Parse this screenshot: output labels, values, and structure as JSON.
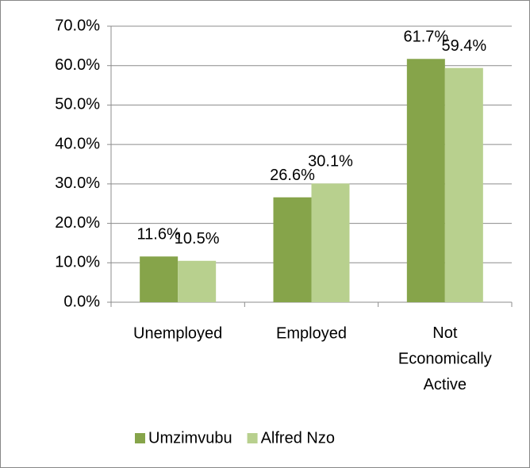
{
  "chart_data": {
    "type": "bar",
    "categories": [
      "Unemployed",
      "Employed",
      "Not Economically Active"
    ],
    "series": [
      {
        "name": "Umzimvubu",
        "color": "#86a44a",
        "values": [
          11.6,
          26.6,
          61.7
        ],
        "value_labels": [
          "11.6%",
          "26.6%",
          "61.7%"
        ]
      },
      {
        "name": "Alfred Nzo",
        "color": "#b8d08e",
        "values": [
          10.5,
          30.1,
          59.4
        ],
        "value_labels": [
          "10.5%",
          "30.1%",
          "59.4%"
        ]
      }
    ],
    "ylim": [
      0,
      70
    ],
    "yticks": [
      {
        "value": 0,
        "label": "0.0%"
      },
      {
        "value": 10,
        "label": "10.0%"
      },
      {
        "value": 20,
        "label": "20.0%"
      },
      {
        "value": 30,
        "label": "30.0%"
      },
      {
        "value": 40,
        "label": "40.0%"
      },
      {
        "value": 50,
        "label": "50.0%"
      },
      {
        "value": 60,
        "label": "60.0%"
      },
      {
        "value": 70,
        "label": "70.0%"
      }
    ],
    "grid": true,
    "legend": "bottom"
  }
}
